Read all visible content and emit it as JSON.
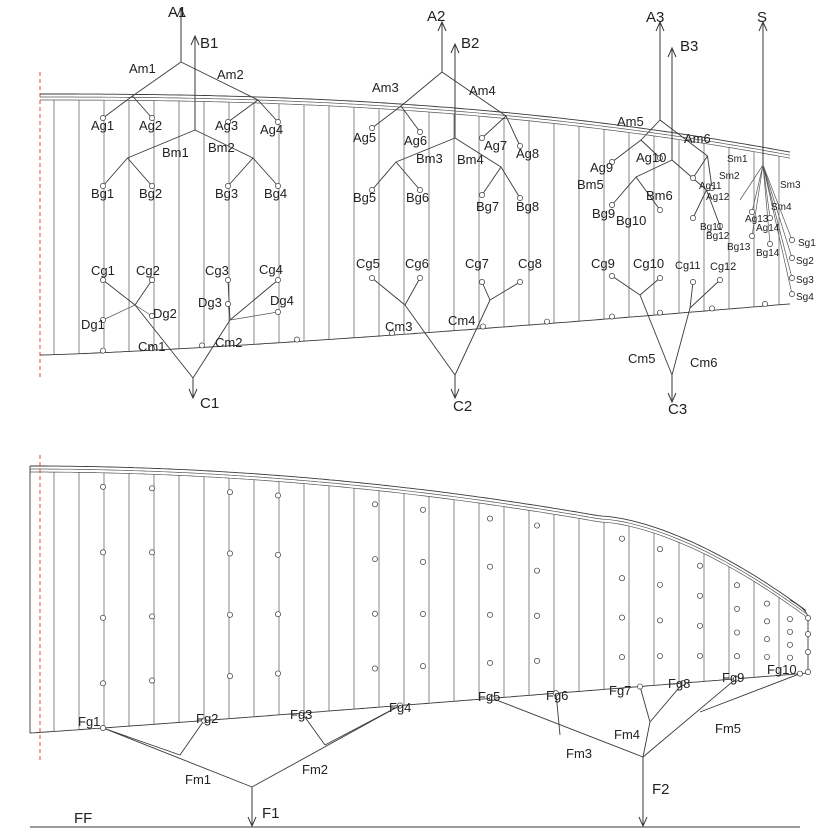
{
  "diagram": {
    "top_panel": {
      "outputs": [
        "A1",
        "B1",
        "A2",
        "B2",
        "A3",
        "B3",
        "S"
      ],
      "outputs_bottom": [
        "C1",
        "C2",
        "C3"
      ],
      "a_mid": [
        "Am1",
        "Am2",
        "Am3",
        "Am4",
        "Am5",
        "Am6"
      ],
      "b_mid": [
        "Bm1",
        "Bm2",
        "Bm3",
        "Bm4",
        "Bm5",
        "Bm6"
      ],
      "c_mid": [
        "Cm1",
        "Cm2",
        "Cm3",
        "Cm4",
        "Cm5",
        "Cm6"
      ],
      "d_groups": [
        "Dg1",
        "Dg2",
        "Dg3",
        "Dg4"
      ],
      "s_mid": [
        "Sm1",
        "Sm2",
        "Sm3",
        "Sm4"
      ],
      "a_groups": [
        "Ag1",
        "Ag2",
        "Ag3",
        "Ag4",
        "Ag5",
        "Ag6",
        "Ag7",
        "Ag8",
        "Ag9",
        "Ag10",
        "Ag11",
        "Ag12",
        "Ag13",
        "Ag14"
      ],
      "b_groups": [
        "Bg1",
        "Bg2",
        "Bg3",
        "Bg4",
        "Bg5",
        "Bg6",
        "Bg7",
        "Bg8",
        "Bg9",
        "Bg10",
        "Bg11",
        "Bg12",
        "Bg13",
        "Bg14"
      ],
      "c_groups": [
        "Cg1",
        "Cg2",
        "Cg3",
        "Cg4",
        "Cg5",
        "Cg6",
        "Cg7",
        "Cg8",
        "Cg9",
        "Cg10",
        "Cg11",
        "Cg12"
      ],
      "s_groups": [
        "Sg1",
        "Sg2",
        "Sg3",
        "Sg4"
      ]
    },
    "bottom_panel": {
      "f_groups": [
        "Fg1",
        "Fg2",
        "Fg3",
        "Fg4",
        "Fg5",
        "Fg6",
        "Fg7",
        "Fg8",
        "Fg9",
        "Fg10"
      ],
      "f_mid": [
        "Fm1",
        "Fm2",
        "Fm3",
        "Fm4",
        "Fm5"
      ],
      "outputs": [
        "F1",
        "F2"
      ],
      "base": "FF"
    },
    "colors": {
      "line": "#3a3a3a",
      "reference": "#e03030",
      "node_fill": "#ffffff"
    }
  }
}
